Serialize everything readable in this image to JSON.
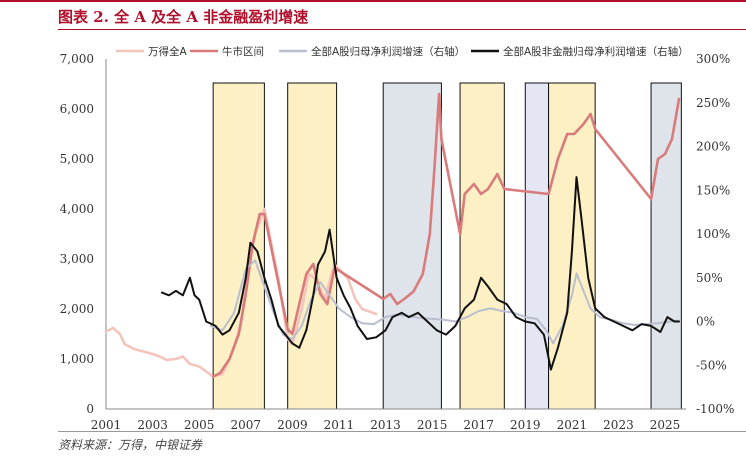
{
  "header": {
    "title": "图表 2. 全 A 及全 A 非金融盈利增速"
  },
  "footer": {
    "source": "资料来源：万得，中银证券"
  },
  "chart_data": {
    "type": "line",
    "title": "图表 2. 全 A 及全 A 非金融盈利增速",
    "xlim": [
      2001,
      2025.9
    ],
    "x_ticks": [
      "2001",
      "2003",
      "2005",
      "2007",
      "2009",
      "2011",
      "2013",
      "2015",
      "2017",
      "2019",
      "2021",
      "2023",
      "2025"
    ],
    "y_left": {
      "lim": [
        0,
        7000
      ],
      "ticks": [
        "0",
        "1,000",
        "2,000",
        "3,000",
        "4,000",
        "5,000",
        "6,000",
        "7,000"
      ]
    },
    "y_right": {
      "lim": [
        -100,
        300
      ],
      "ticks": [
        "-100%",
        "-50%",
        "0%",
        "50%",
        "100%",
        "150%",
        "200%",
        "250%",
        "300%"
      ]
    },
    "shaded_periods": [
      {
        "start": 2005.6,
        "end": 2007.8,
        "color": "#fdf0c4"
      },
      {
        "start": 2008.8,
        "end": 2010.9,
        "color": "#fdf0c4"
      },
      {
        "start": 2012.9,
        "end": 2015.4,
        "color": "#dfe3ea"
      },
      {
        "start": 2016.2,
        "end": 2018.1,
        "color": "#fdf0c4"
      },
      {
        "start": 2019.0,
        "end": 2020.0,
        "color": "#e4e7f3"
      },
      {
        "start": 2020.0,
        "end": 2022.0,
        "color": "#fdf0c4"
      },
      {
        "start": 2024.4,
        "end": 2025.7,
        "color": "#dfe3ea"
      }
    ],
    "series": [
      {
        "name": "万得全A",
        "axis": "left",
        "color": "#f4c4bc",
        "width": 2.6,
        "points": [
          [
            2001,
            1550
          ],
          [
            2001.3,
            1620
          ],
          [
            2001.6,
            1500
          ],
          [
            2001.8,
            1300
          ],
          [
            2002.2,
            1200
          ],
          [
            2002.6,
            1150
          ],
          [
            2003,
            1100
          ],
          [
            2003.3,
            1050
          ],
          [
            2003.6,
            980
          ],
          [
            2004,
            1000
          ],
          [
            2004.3,
            1050
          ],
          [
            2004.6,
            900
          ],
          [
            2005,
            850
          ],
          [
            2005.3,
            750
          ],
          [
            2005.6,
            650
          ],
          [
            2006,
            700
          ],
          [
            2006.4,
            1100
          ],
          [
            2006.8,
            1700
          ],
          [
            2007,
            2500
          ],
          [
            2007.4,
            3500
          ],
          [
            2007.8,
            4000
          ],
          [
            2008.1,
            3300
          ],
          [
            2008.4,
            2600
          ],
          [
            2008.8,
            1400
          ],
          [
            2009,
            1300
          ],
          [
            2009.4,
            2000
          ],
          [
            2009.7,
            2700
          ],
          [
            2010,
            2600
          ],
          [
            2010.4,
            2200
          ],
          [
            2010.8,
            2900
          ],
          [
            2011,
            2800
          ],
          [
            2011.4,
            2600
          ],
          [
            2011.7,
            2200
          ],
          [
            2012,
            2000
          ],
          [
            2012.6,
            1900
          ]
        ]
      },
      {
        "name": "牛市区间",
        "axis": "left",
        "color": "#d97b7b",
        "width": 2.6,
        "points": [
          [
            2005.6,
            650
          ],
          [
            2005.9,
            720
          ],
          [
            2006.3,
            1000
          ],
          [
            2006.7,
            1500
          ],
          [
            2007,
            2300
          ],
          [
            2007.3,
            3300
          ],
          [
            2007.6,
            3900
          ],
          [
            2007.8,
            3900
          ],
          [
            2008.8,
            1600
          ],
          [
            2009.0,
            1500
          ],
          [
            2009.3,
            2100
          ],
          [
            2009.6,
            2700
          ],
          [
            2009.9,
            2900
          ],
          [
            2010.2,
            2300
          ],
          [
            2010.5,
            2100
          ],
          [
            2010.8,
            2800
          ],
          [
            2010.9,
            2800
          ],
          [
            2012.9,
            2200
          ],
          [
            2013.2,
            2300
          ],
          [
            2013.5,
            2100
          ],
          [
            2013.8,
            2200
          ],
          [
            2014.2,
            2350
          ],
          [
            2014.6,
            2700
          ],
          [
            2014.9,
            3500
          ],
          [
            2015.1,
            4800
          ],
          [
            2015.3,
            6300
          ],
          [
            2015.4,
            5400
          ],
          [
            2016.2,
            3500
          ],
          [
            2016.4,
            4300
          ],
          [
            2016.8,
            4500
          ],
          [
            2017.1,
            4300
          ],
          [
            2017.4,
            4400
          ],
          [
            2017.8,
            4700
          ],
          [
            2018.1,
            4400
          ],
          [
            2020.0,
            4300
          ],
          [
            2020.4,
            5000
          ],
          [
            2020.8,
            5500
          ],
          [
            2021.1,
            5500
          ],
          [
            2021.5,
            5700
          ],
          [
            2021.8,
            5900
          ],
          [
            2022.0,
            5600
          ],
          [
            2024.4,
            4200
          ],
          [
            2024.7,
            5000
          ],
          [
            2025.0,
            5100
          ],
          [
            2025.3,
            5400
          ],
          [
            2025.6,
            6200
          ]
        ]
      },
      {
        "name": "全部A股归母净利润增速（右轴）",
        "axis": "right",
        "color": "#b9bfcf",
        "width": 2,
        "points": [
          [
            2005.5,
            -5
          ],
          [
            2006,
            -10
          ],
          [
            2006.5,
            10
          ],
          [
            2007,
            60
          ],
          [
            2007.4,
            70
          ],
          [
            2007.8,
            40
          ],
          [
            2008.2,
            10
          ],
          [
            2008.6,
            -15
          ],
          [
            2009,
            -20
          ],
          [
            2009.4,
            -5
          ],
          [
            2009.8,
            25
          ],
          [
            2010.2,
            45
          ],
          [
            2010.6,
            30
          ],
          [
            2011,
            15
          ],
          [
            2011.5,
            5
          ],
          [
            2012,
            -2
          ],
          [
            2012.5,
            -3
          ],
          [
            2013,
            5
          ],
          [
            2013.5,
            8
          ],
          [
            2014,
            6
          ],
          [
            2014.5,
            4
          ],
          [
            2015,
            3
          ],
          [
            2015.5,
            2
          ],
          [
            2016,
            0
          ],
          [
            2016.5,
            5
          ],
          [
            2017,
            12
          ],
          [
            2017.5,
            15
          ],
          [
            2018,
            12
          ],
          [
            2018.5,
            10
          ],
          [
            2019,
            5
          ],
          [
            2019.5,
            3
          ],
          [
            2019.9,
            -10
          ],
          [
            2020.2,
            -25
          ],
          [
            2020.6,
            -5
          ],
          [
            2021,
            30
          ],
          [
            2021.2,
            55
          ],
          [
            2021.5,
            35
          ],
          [
            2021.8,
            15
          ],
          [
            2022.2,
            5
          ],
          [
            2022.7,
            2
          ],
          [
            2023.2,
            -2
          ],
          [
            2023.7,
            -4
          ],
          [
            2024.2,
            -3
          ],
          [
            2024.7,
            -2
          ],
          [
            2025.2,
            0
          ],
          [
            2025.6,
            1
          ]
        ]
      },
      {
        "name": "全部A股非金融归母净利润增速（右轴）",
        "axis": "right",
        "color": "#111111",
        "width": 2,
        "points": [
          [
            2003.4,
            33
          ],
          [
            2003.7,
            30
          ],
          [
            2004,
            35
          ],
          [
            2004.3,
            30
          ],
          [
            2004.6,
            50
          ],
          [
            2004.8,
            30
          ],
          [
            2005,
            25
          ],
          [
            2005.3,
            0
          ],
          [
            2005.7,
            -5
          ],
          [
            2006,
            -15
          ],
          [
            2006.3,
            -10
          ],
          [
            2006.7,
            10
          ],
          [
            2007,
            50
          ],
          [
            2007.2,
            90
          ],
          [
            2007.5,
            80
          ],
          [
            2007.8,
            50
          ],
          [
            2008.1,
            25
          ],
          [
            2008.4,
            -5
          ],
          [
            2008.7,
            -15
          ],
          [
            2009,
            -25
          ],
          [
            2009.3,
            -30
          ],
          [
            2009.6,
            -10
          ],
          [
            2009.9,
            30
          ],
          [
            2010.1,
            65
          ],
          [
            2010.4,
            80
          ],
          [
            2010.6,
            105
          ],
          [
            2010.9,
            50
          ],
          [
            2011.2,
            30
          ],
          [
            2011.5,
            15
          ],
          [
            2011.8,
            -5
          ],
          [
            2012.2,
            -20
          ],
          [
            2012.6,
            -18
          ],
          [
            2013,
            -10
          ],
          [
            2013.3,
            5
          ],
          [
            2013.7,
            10
          ],
          [
            2014,
            5
          ],
          [
            2014.4,
            10
          ],
          [
            2014.8,
            0
          ],
          [
            2015.2,
            -10
          ],
          [
            2015.6,
            -15
          ],
          [
            2016,
            -5
          ],
          [
            2016.4,
            15
          ],
          [
            2016.8,
            25
          ],
          [
            2017.1,
            50
          ],
          [
            2017.4,
            40
          ],
          [
            2017.8,
            25
          ],
          [
            2018.2,
            20
          ],
          [
            2018.6,
            5
          ],
          [
            2019,
            0
          ],
          [
            2019.4,
            -2
          ],
          [
            2019.8,
            -15
          ],
          [
            2020.1,
            -55
          ],
          [
            2020.4,
            -30
          ],
          [
            2020.8,
            10
          ],
          [
            2021.0,
            80
          ],
          [
            2021.2,
            165
          ],
          [
            2021.4,
            120
          ],
          [
            2021.7,
            50
          ],
          [
            2022,
            15
          ],
          [
            2022.4,
            5
          ],
          [
            2022.8,
            0
          ],
          [
            2023.2,
            -5
          ],
          [
            2023.6,
            -10
          ],
          [
            2024,
            -3
          ],
          [
            2024.4,
            -5
          ],
          [
            2024.8,
            -12
          ],
          [
            2025.1,
            5
          ],
          [
            2025.4,
            0
          ],
          [
            2025.6,
            0
          ]
        ]
      }
    ]
  }
}
